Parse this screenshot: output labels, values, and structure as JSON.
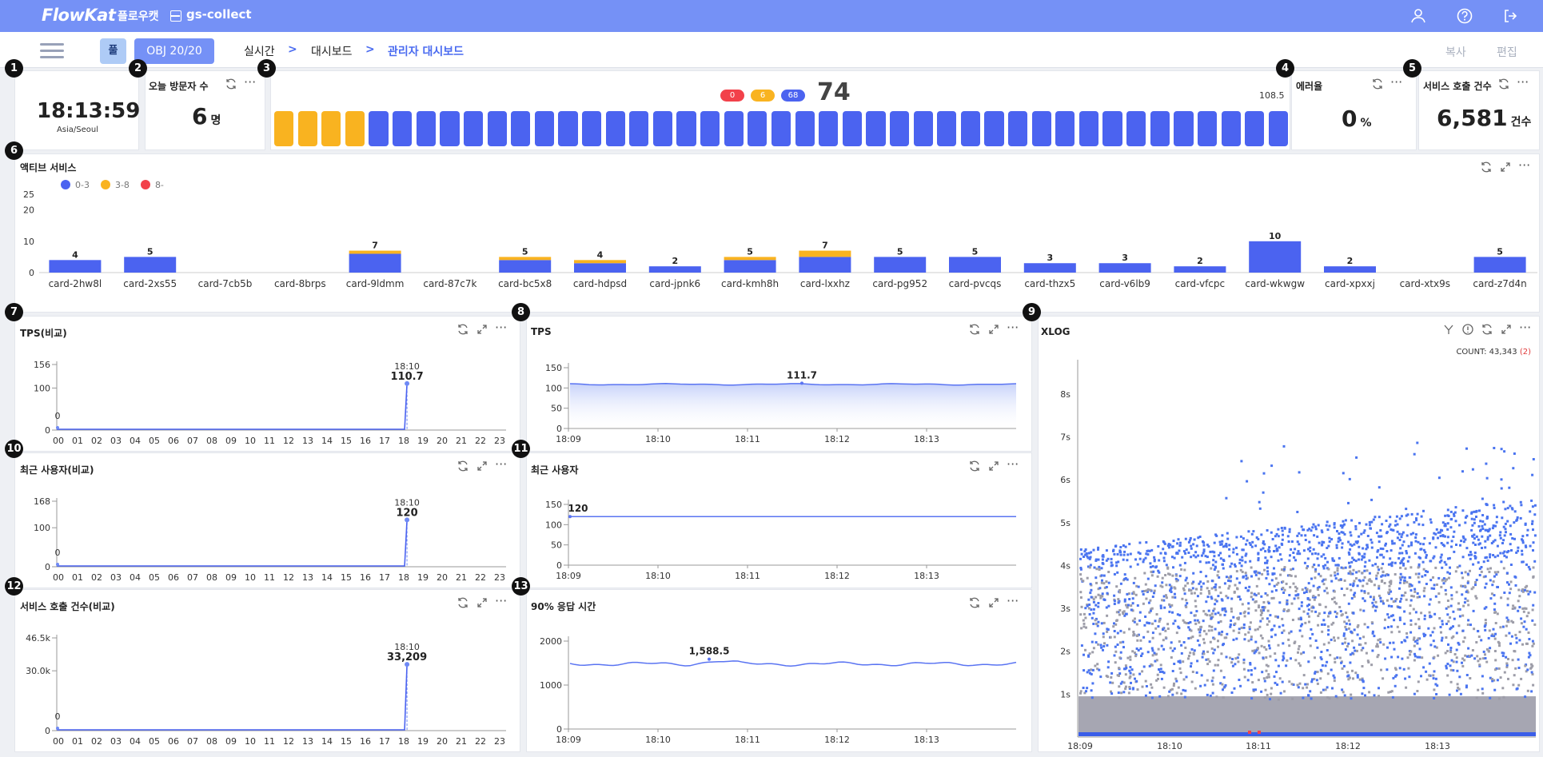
{
  "topbar": {
    "logo": "FlowKat",
    "brand_sub": "플로우캣",
    "project": "gs-collect",
    "icons": [
      "user-icon",
      "help-icon",
      "logout-icon"
    ]
  },
  "navbar": {
    "pull_label": "풀",
    "obj_label": "OBJ 20/20",
    "breadcrumb": [
      "실시간",
      "대시보드",
      "관리자 대시보드"
    ],
    "copy_label": "복사",
    "edit_label": "편집"
  },
  "clock": {
    "badge": "1",
    "time": "18:13:59",
    "tz": "Asia/Seoul"
  },
  "visitors": {
    "badge": "2",
    "title": "오늘 방문자 수",
    "value": "6",
    "unit": "명"
  },
  "gauge": {
    "badge": "3",
    "counts": [
      {
        "value": "0",
        "color": "#f2414a"
      },
      {
        "value": "6",
        "color": "#f9b320"
      },
      {
        "value": "68",
        "color": "#4b63f0"
      }
    ],
    "total": "74",
    "right_value": "108.5",
    "bars_yellow": 4,
    "bars_total": 43
  },
  "errorrate": {
    "badge": "4",
    "title": "에러율",
    "value": "0",
    "unit": "%"
  },
  "service_calls": {
    "badge": "5",
    "title": "서비스 호출 건수",
    "value": "6,581",
    "unit": "건수"
  },
  "active_service": {
    "badge": "6",
    "title": "액티브 서비스",
    "legend": [
      {
        "label": "0-3",
        "color": "#4b63f0"
      },
      {
        "label": "3-8",
        "color": "#f9b320"
      },
      {
        "label": "8-",
        "color": "#f2414a"
      }
    ],
    "chart_data": {
      "type": "bar",
      "stacked": true,
      "categories": [
        "card-2hw8l",
        "card-2xs55",
        "card-7cb5b",
        "card-8brps",
        "card-9ldmm",
        "card-87c7k",
        "card-bc5x8",
        "card-hdpsd",
        "card-jpnk6",
        "card-kmh8h",
        "card-lxxhz",
        "card-pg952",
        "card-pvcqs",
        "card-thzx5",
        "card-v6lb9",
        "card-vfcpc",
        "card-wkwgw",
        "card-xpxxj",
        "card-xtx9s",
        "card-z7d4n"
      ],
      "series": [
        {
          "name": "0-3",
          "values": [
            4,
            5,
            0,
            0,
            6,
            0,
            4,
            3,
            2,
            4,
            5,
            5,
            5,
            3,
            3,
            2,
            10,
            2,
            0,
            5
          ]
        },
        {
          "name": "3-8",
          "values": [
            0,
            0,
            0,
            0,
            1,
            0,
            1,
            1,
            0,
            1,
            2,
            0,
            0,
            0,
            0,
            0,
            0,
            0,
            0,
            0
          ]
        },
        {
          "name": "8-",
          "values": [
            0,
            0,
            0,
            0,
            0,
            0,
            0,
            0,
            0,
            0,
            0,
            0,
            0,
            0,
            0,
            0,
            0,
            0,
            0,
            0
          ]
        }
      ],
      "totals": [
        "4",
        "5",
        "",
        "",
        "7",
        "",
        "5",
        "4",
        "2",
        "5",
        "7",
        "5",
        "5",
        "3",
        "3",
        "2",
        "10",
        "2",
        "",
        "5"
      ],
      "yticks": [
        "0",
        "10",
        "20",
        "25"
      ],
      "ylim": [
        0,
        25
      ]
    }
  },
  "tps_compare": {
    "badge": "7",
    "title": "TPS(비교)",
    "chart_data": {
      "type": "line",
      "x": [
        "00",
        "01",
        "02",
        "03",
        "04",
        "05",
        "06",
        "07",
        "08",
        "09",
        "10",
        "11",
        "12",
        "13",
        "14",
        "15",
        "16",
        "17",
        "18",
        "19",
        "20",
        "21",
        "22",
        "23"
      ],
      "yticks": [
        "0",
        "100",
        "156"
      ],
      "ylim": [
        0,
        156
      ],
      "marker": {
        "time": "18:10",
        "value": "110.7",
        "start_label": "0"
      },
      "points": [
        [
          0,
          0
        ],
        [
          17.9,
          0
        ],
        [
          18.1,
          110.7
        ]
      ]
    }
  },
  "tps": {
    "badge": "8",
    "title": "TPS",
    "chart_data": {
      "type": "area",
      "xticks": [
        "18:09",
        "18:10",
        "18:11",
        "18:12",
        "18:13"
      ],
      "yticks": [
        "0",
        "50",
        "100",
        "150"
      ],
      "ylim": [
        0,
        150
      ],
      "peak_label": "111.7",
      "level": 109
    }
  },
  "xlog": {
    "badge": "9",
    "title": "XLOG",
    "count_label": "COUNT: 43,343",
    "count_err": "(2)",
    "chart_data": {
      "type": "scatter",
      "xticks": [
        "18:09",
        "18:10",
        "18:11",
        "18:12",
        "18:13"
      ],
      "yticks": [
        "1s",
        "2s",
        "3s",
        "4s",
        "5s",
        "6s",
        "7s",
        "8s"
      ],
      "ylim": [
        0,
        8.8
      ]
    }
  },
  "users_compare": {
    "badge": "10",
    "title": "최근 사용자(비교)",
    "chart_data": {
      "type": "line",
      "yticks": [
        "0",
        "100",
        "168"
      ],
      "ylim": [
        0,
        168
      ],
      "marker": {
        "time": "18:10",
        "value": "120",
        "start_label": "0"
      }
    }
  },
  "users": {
    "badge": "11",
    "title": "최근 사용자",
    "chart_data": {
      "type": "line",
      "xticks": [
        "18:09",
        "18:10",
        "18:11",
        "18:12",
        "18:13"
      ],
      "yticks": [
        "0",
        "50",
        "100",
        "150"
      ],
      "ylim": [
        0,
        150
      ],
      "start_label": "120",
      "level": 120
    }
  },
  "calls_compare": {
    "badge": "12",
    "title": "서비스 호출 건수(비교)",
    "chart_data": {
      "type": "line",
      "yticks": [
        "0",
        "30.0k",
        "46.5k"
      ],
      "ylim": [
        0,
        46500
      ],
      "marker": {
        "time": "18:10",
        "value": "33,209",
        "start_label": "0"
      }
    }
  },
  "resp90": {
    "badge": "13",
    "title": "90% 응답 시간",
    "chart_data": {
      "type": "line",
      "xticks": [
        "18:09",
        "18:10",
        "18:11",
        "18:12",
        "18:13"
      ],
      "yticks": [
        "0",
        "1000",
        "2000"
      ],
      "ylim": [
        0,
        2000
      ],
      "peak_label": "1,588.5",
      "level": 1480
    }
  }
}
